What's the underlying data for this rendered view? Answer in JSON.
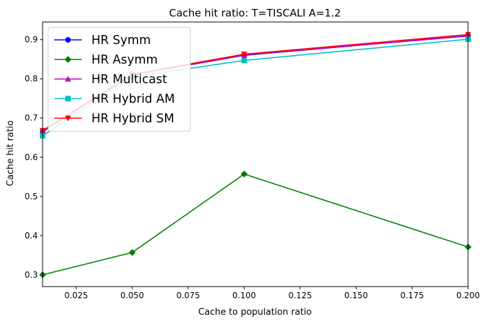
{
  "chart_data": {
    "type": "line",
    "title": "Cache hit ratio: T=TISCALI A=1.2",
    "xlabel": "Cache to population ratio",
    "ylabel": "Cache hit ratio",
    "xlim": [
      0.01,
      0.2
    ],
    "ylim": [
      0.27,
      0.945
    ],
    "xticks": [
      0.025,
      0.05,
      0.075,
      0.1,
      0.125,
      0.15,
      0.175,
      0.2
    ],
    "xtick_labels": [
      "0.025",
      "0.050",
      "0.075",
      "0.100",
      "0.125",
      "0.150",
      "0.175",
      "0.200"
    ],
    "yticks": [
      0.3,
      0.4,
      0.5,
      0.6,
      0.7,
      0.8,
      0.9
    ],
    "ytick_labels": [
      "0.3",
      "0.4",
      "0.5",
      "0.6",
      "0.7",
      "0.8",
      "0.9"
    ],
    "grid": false,
    "legend_position": "top-left",
    "x": [
      0.01,
      0.05,
      0.1,
      0.2
    ],
    "series": [
      {
        "name": "HR Symm",
        "color": "#0000ff",
        "marker": "circle",
        "values": [
          0.665,
          0.81,
          0.86,
          0.91
        ]
      },
      {
        "name": "HR Asymm",
        "color": "#008000",
        "marker": "diamond",
        "values": [
          0.3,
          0.357,
          0.557,
          0.371
        ]
      },
      {
        "name": "HR Multicast",
        "color": "#bf00bf",
        "marker": "triangle-up",
        "values": [
          0.666,
          0.81,
          0.861,
          0.909
        ]
      },
      {
        "name": "HR Hybrid AM",
        "color": "#00bfbf",
        "marker": "square",
        "values": [
          0.655,
          0.805,
          0.847,
          0.901
        ]
      },
      {
        "name": "HR Hybrid SM",
        "color": "#ff0000",
        "marker": "triangle-down",
        "values": [
          0.668,
          0.812,
          0.863,
          0.913
        ]
      }
    ]
  }
}
